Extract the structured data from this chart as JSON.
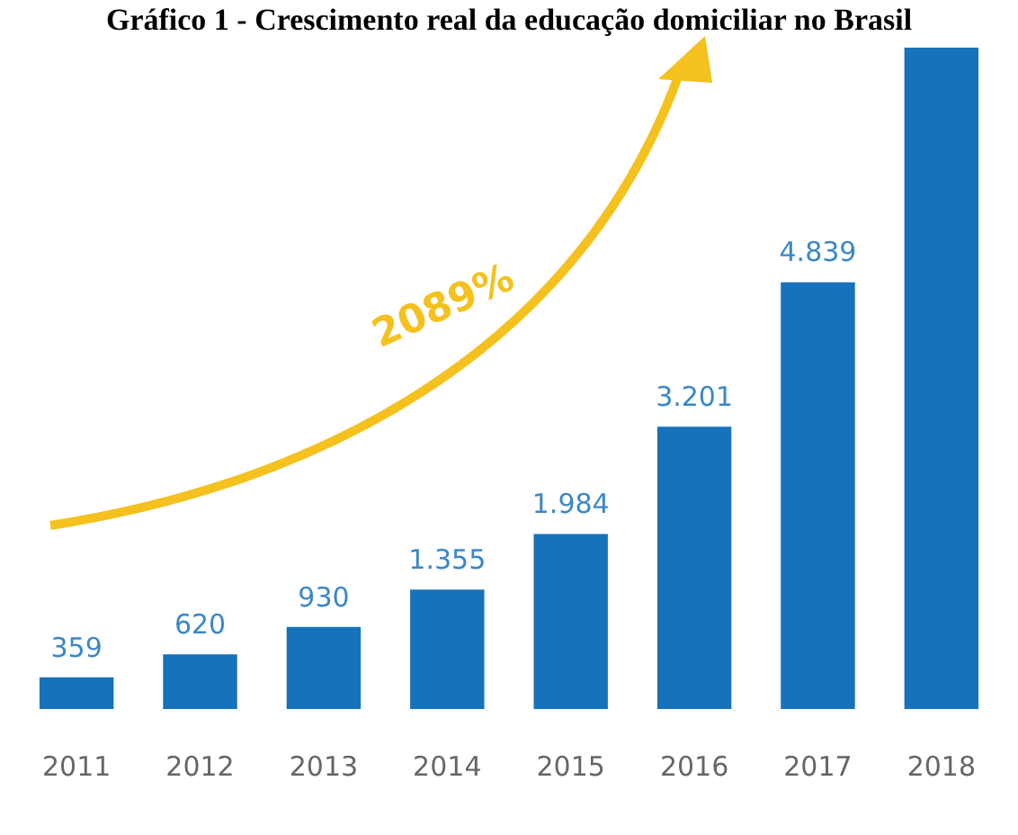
{
  "chart_data": {
    "type": "bar",
    "title": "Gráfico 1 - Crescimento real da educação domiciliar no Brasil",
    "categories": [
      "2011",
      "2012",
      "2013",
      "2014",
      "2015",
      "2016",
      "2017",
      "2018"
    ],
    "values": [
      359,
      620,
      930,
      1355,
      1984,
      3201,
      4839,
      7500
    ],
    "value_labels": [
      "359",
      "620",
      "930",
      "1.355",
      "1.984",
      "3.201",
      "4.839",
      null
    ],
    "color": "#1672bb",
    "grid": false,
    "legend": false,
    "annotations": [
      "2089%"
    ]
  }
}
